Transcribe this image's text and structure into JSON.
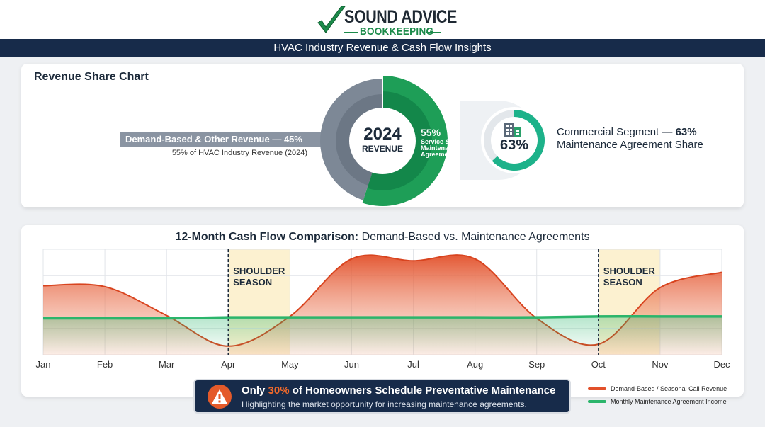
{
  "brand": {
    "line1": "SOUND ADVICE",
    "line2": "BOOKKEEPING",
    "accent_color": "#1b8a4a"
  },
  "banner": {
    "title": "HVAC Industry Revenue & Cash Flow Insights"
  },
  "revenue_share": {
    "title": "Revenue Share Chart",
    "demand_label": "Demand-Based & Other Revenue — 45%",
    "demand_sub": "55% of HVAC Industry Revenue (2024)",
    "center_year": "2024",
    "center_label": "REVENUE",
    "service_pct": "55%",
    "service_label": "Service & Maintenance Agreements",
    "commercial_pct": "63%",
    "commercial_line1": "Commercial Segment — ",
    "commercial_line1_value": "63%",
    "commercial_line2": "Maintenance Agreement Share",
    "building_icon": "building-icon"
  },
  "chart_data": [
    {
      "type": "pie",
      "categories": [
        "Demand-Based & Other Revenue",
        "Service & Maintenance Agreements"
      ],
      "values": [
        45,
        55
      ],
      "colors": [
        "#7d8896",
        "#1e9e57"
      ]
    },
    {
      "type": "pie",
      "categories": [
        "Commercial Segment — Maintenance Agreement Share"
      ],
      "values": [
        63
      ],
      "colors": [
        "#1db28a"
      ]
    },
    {
      "type": "area",
      "title_bold": "12-Month Cash Flow Comparison:",
      "title_rest": " Demand-Based vs. Maintenance Agreements",
      "categories": [
        "Jan",
        "Feb",
        "Mar",
        "Apr",
        "May",
        "Jun",
        "Jul",
        "Aug",
        "Sep",
        "Oct",
        "Nov",
        "Dec"
      ],
      "series": [
        {
          "name": "Demand-Based / Seasonal Call Revenue",
          "color": "#e2502a",
          "values": [
            72,
            71,
            41,
            9,
            40,
            100,
            98,
            100,
            38,
            11,
            70,
            86
          ]
        },
        {
          "name": "Monthly Maintenance Agreement Income",
          "color": "#2bb56b",
          "values": [
            38,
            38,
            38,
            39,
            39,
            39,
            39,
            39,
            39,
            40,
            40,
            40
          ]
        }
      ],
      "ylim": [
        0,
        110
      ],
      "grid": true,
      "annotations": [
        {
          "label": "SHOULDER SEASON",
          "from": "Apr",
          "to": "May"
        },
        {
          "label": "SHOULDER SEASON",
          "from": "Oct",
          "to": "Nov"
        }
      ],
      "legend": "bottom-right"
    }
  ],
  "alert": {
    "icon": "warning-icon",
    "pre": "Only ",
    "highlight": "30%",
    "post": " of Homeowners Schedule Preventative Maintenance",
    "sub": "Highlighting the market opportunity for increasing maintenance agreements."
  }
}
